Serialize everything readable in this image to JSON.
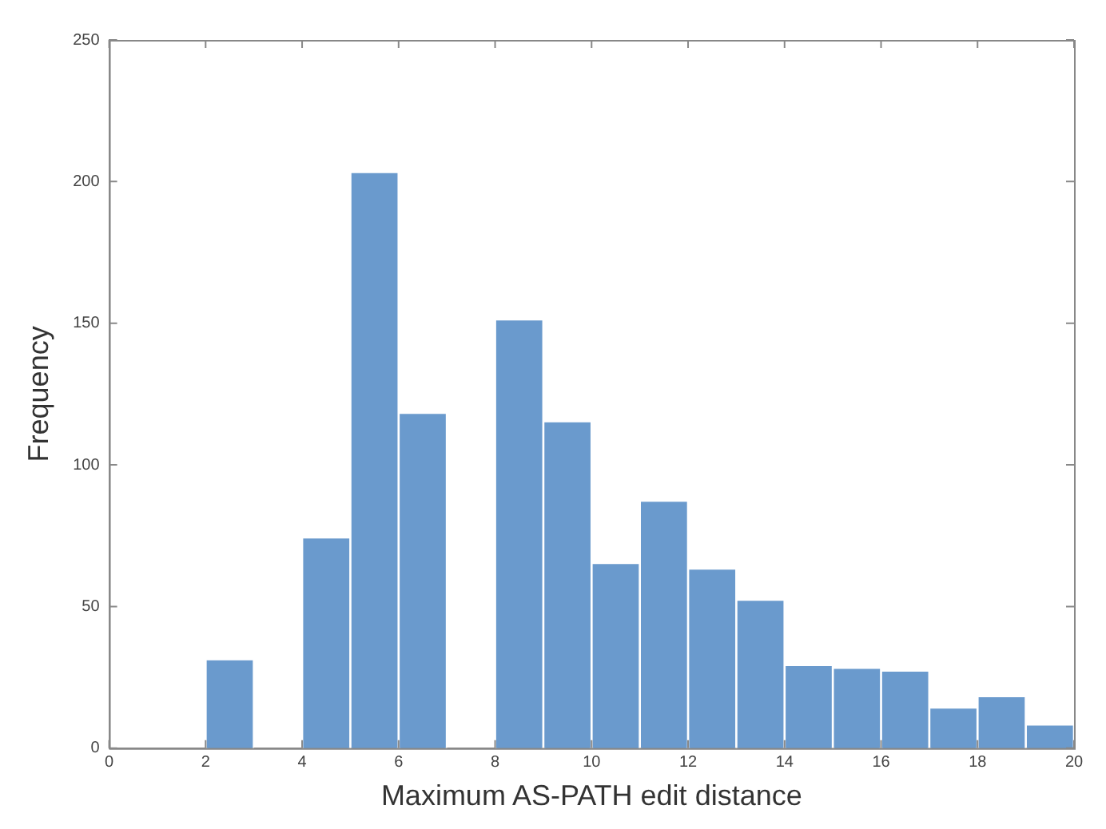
{
  "chart_data": {
    "type": "histogram",
    "xlabel": "Maximum AS-PATH edit distance",
    "ylabel": "Frequency",
    "bins": [
      0,
      1,
      2,
      3,
      4,
      5,
      6,
      7,
      8,
      9,
      10,
      11,
      12,
      13,
      14,
      15,
      16,
      17,
      18,
      19,
      20
    ],
    "values": [
      0,
      0,
      31,
      0,
      74,
      203,
      118,
      0,
      151,
      115,
      65,
      87,
      63,
      52,
      29,
      28,
      27,
      14,
      18,
      8
    ],
    "color": "#6a9acd",
    "xlim": [
      0,
      20
    ],
    "xticks": [
      0,
      2,
      4,
      6,
      8,
      10,
      12,
      14,
      16,
      18,
      20
    ],
    "ylim": [
      0,
      250
    ],
    "yticks": [
      0,
      50,
      100,
      150,
      200,
      250
    ],
    "grid": false
  }
}
